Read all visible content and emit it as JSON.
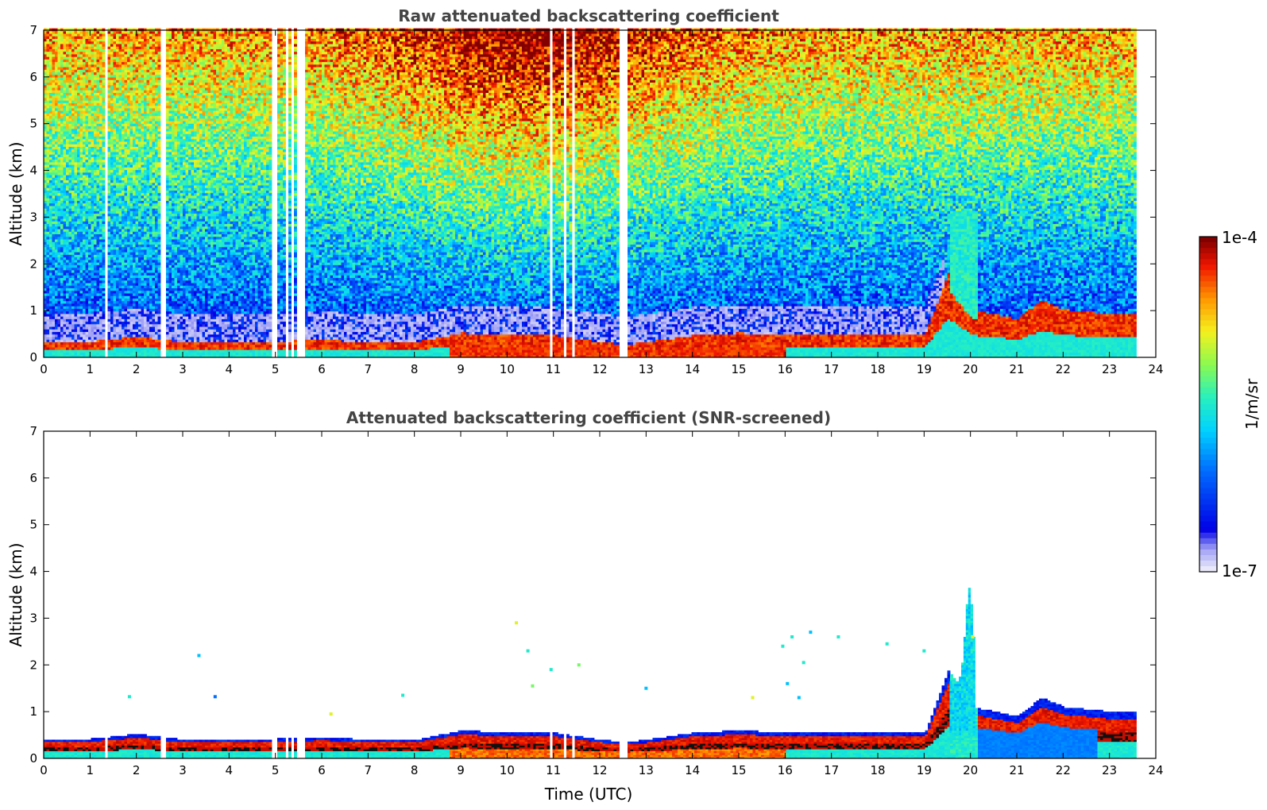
{
  "chart_data": [
    {
      "type": "heatmap",
      "title": "Raw attenuated backscattering coefficient",
      "xlabel": "",
      "ylabel": "Altitude (km)",
      "xlim": [
        0,
        24
      ],
      "ylim": [
        0,
        7
      ],
      "x_ticks": [
        "0",
        "1",
        "2",
        "3",
        "4",
        "5",
        "6",
        "7",
        "8",
        "9",
        "10",
        "11",
        "12",
        "13",
        "14",
        "15",
        "16",
        "17",
        "18",
        "19",
        "20",
        "21",
        "22",
        "23",
        "24"
      ],
      "y_ticks": [
        "0",
        "1",
        "2",
        "3",
        "4",
        "5",
        "6",
        "7"
      ],
      "data_end_hour": 23.55,
      "gap_hours": [
        1.3,
        2.55,
        4.9,
        5.0,
        5.2,
        5.35,
        5.45,
        5.55,
        10.9,
        11.2,
        11.4,
        12.45,
        12.55
      ],
      "boundary_layer_top_km": [
        [
          0,
          0.3
        ],
        [
          1,
          0.32
        ],
        [
          2,
          0.42
        ],
        [
          3,
          0.3
        ],
        [
          4,
          0.3
        ],
        [
          5,
          0.32
        ],
        [
          6,
          0.35
        ],
        [
          7,
          0.3
        ],
        [
          8,
          0.3
        ],
        [
          9,
          0.5
        ],
        [
          10,
          0.45
        ],
        [
          11,
          0.45
        ],
        [
          12,
          0.3
        ],
        [
          12.5,
          0.25
        ],
        [
          13,
          0.3
        ],
        [
          14,
          0.45
        ],
        [
          15,
          0.5
        ],
        [
          16,
          0.45
        ],
        [
          17,
          0.45
        ],
        [
          18,
          0.45
        ],
        [
          19,
          0.45
        ],
        [
          19.5,
          1.8
        ],
        [
          20,
          1.0
        ],
        [
          21,
          0.8
        ],
        [
          21.5,
          1.2
        ],
        [
          22,
          1.0
        ],
        [
          23,
          0.9
        ],
        [
          23.5,
          0.9
        ]
      ],
      "plume_features": [
        {
          "x0": 19.5,
          "x1": 20.1,
          "top_km": 3.1,
          "level": 0.5
        },
        {
          "x0": 20.0,
          "x1": 22.7,
          "top_km": 0.45,
          "level": 0.3
        }
      ],
      "noise_profile": "increasing signal with altitude; maximum around 9-12 UTC"
    },
    {
      "type": "heatmap",
      "title": "Attenuated backscattering coefficient (SNR-screened)",
      "xlabel": "Time (UTC)",
      "ylabel": "Altitude (km)",
      "xlim": [
        0,
        24
      ],
      "ylim": [
        0,
        7
      ],
      "x_ticks": [
        "0",
        "1",
        "2",
        "3",
        "4",
        "5",
        "6",
        "7",
        "8",
        "9",
        "10",
        "11",
        "12",
        "13",
        "14",
        "15",
        "16",
        "17",
        "18",
        "19",
        "20",
        "21",
        "22",
        "23",
        "24"
      ],
      "y_ticks": [
        "0",
        "1",
        "2",
        "3",
        "4",
        "5",
        "6",
        "7"
      ],
      "data_end_hour": 23.55,
      "screened": true,
      "sparse_points": [
        [
          1.85,
          1.32,
          0.5
        ],
        [
          3.35,
          2.2,
          0.4
        ],
        [
          3.7,
          1.32,
          0.3
        ],
        [
          6.2,
          0.95,
          0.7
        ],
        [
          7.75,
          1.35,
          0.5
        ],
        [
          10.2,
          2.9,
          0.7
        ],
        [
          10.45,
          2.3,
          0.5
        ],
        [
          10.55,
          1.55,
          0.6
        ],
        [
          10.95,
          1.9,
          0.5
        ],
        [
          11.55,
          2.0,
          0.6
        ],
        [
          13.0,
          1.5,
          0.4
        ],
        [
          15.3,
          1.3,
          0.7
        ],
        [
          15.95,
          2.4,
          0.5
        ],
        [
          16.05,
          1.6,
          0.4
        ],
        [
          16.15,
          2.6,
          0.5
        ],
        [
          16.3,
          1.3,
          0.4
        ],
        [
          16.4,
          2.05,
          0.5
        ],
        [
          16.55,
          2.7,
          0.4
        ],
        [
          17.15,
          2.6,
          0.5
        ],
        [
          18.2,
          2.45,
          0.5
        ],
        [
          19.0,
          2.3,
          0.5
        ],
        [
          20.05,
          2.6,
          0.7
        ]
      ]
    }
  ],
  "colorbar": {
    "label": "1/m/sr",
    "max_label": "1e-4",
    "min_label": "1e-7"
  }
}
